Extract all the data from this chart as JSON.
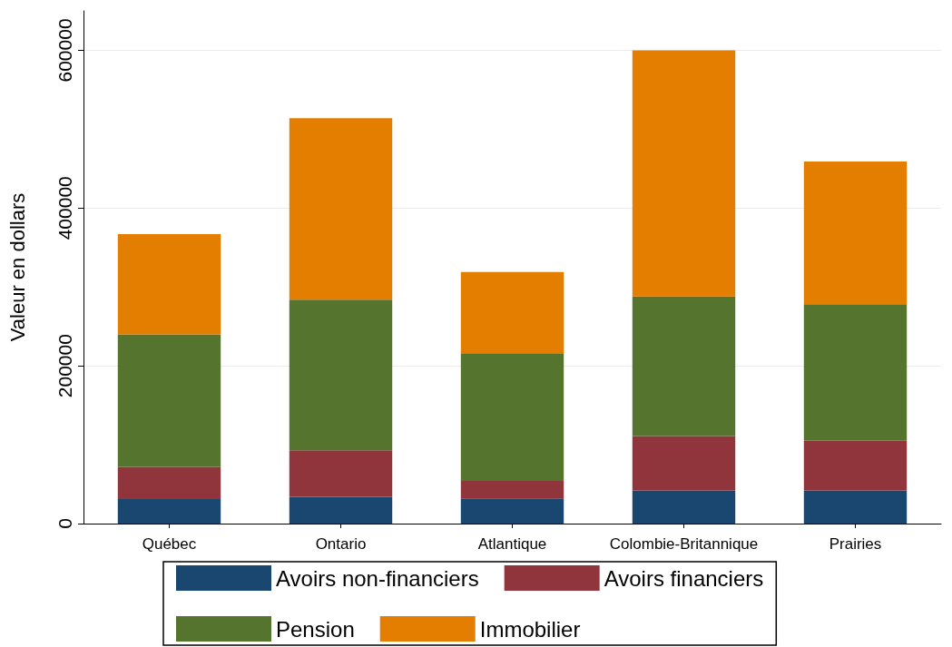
{
  "chart_data": {
    "type": "bar",
    "stacked": true,
    "ylabel": "Valeur en dollars",
    "categories": [
      "Québec",
      "Ontario",
      "Atlantique",
      "Colombie-Britannique",
      "Prairies"
    ],
    "series": [
      {
        "name": "Avoirs non-financiers",
        "color": "#1a476f",
        "values": [
          31000,
          34000,
          32000,
          42000,
          42000
        ]
      },
      {
        "name": "Avoirs financiers",
        "color": "#90353b",
        "values": [
          41000,
          59000,
          22000,
          69000,
          63000
        ]
      },
      {
        "name": "Pension",
        "color": "#55752f",
        "values": [
          168000,
          191000,
          162000,
          177000,
          173000
        ]
      },
      {
        "name": "Immobilier",
        "color": "#e37e00",
        "values": [
          127000,
          230000,
          103000,
          312000,
          181000
        ]
      }
    ],
    "ylim": [
      0,
      650000
    ],
    "yticks": [
      0,
      200000,
      400000,
      600000
    ],
    "grid": "y",
    "legend": "bottom"
  }
}
